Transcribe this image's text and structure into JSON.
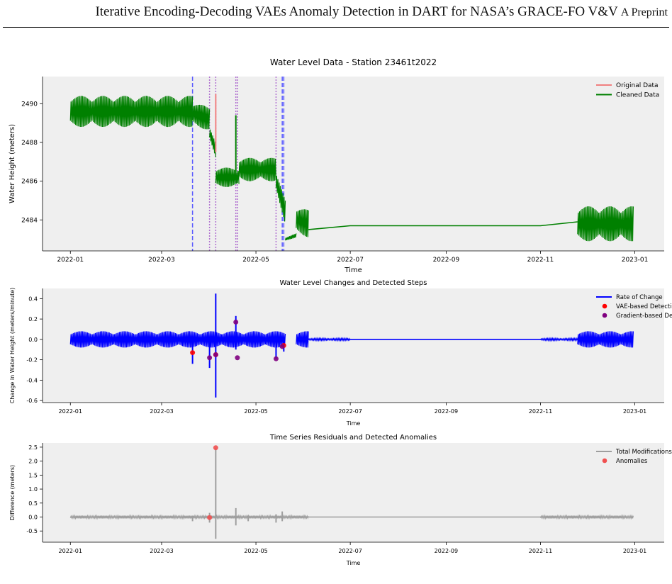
{
  "header": {
    "running_title": "Iterative Encoding-Decoding VAEs Anomaly Detection in DART for NASA’s GRACE-FO V&V",
    "running_title_suffix": "A Preprint"
  },
  "chart_data": [
    {
      "type": "line",
      "title": "Water Level Data - Station 23461t2022",
      "xlabel": "Time",
      "ylabel": "Water Height (meters)",
      "x_tick_labels": [
        "2022-01",
        "2022-03",
        "2022-05",
        "2022-07",
        "2022-09",
        "2022-11",
        "2023-01"
      ],
      "x_tick_values": [
        "2022-01-01",
        "2022-03-01",
        "2022-05-01",
        "2022-07-01",
        "2022-09-01",
        "2022-11-01",
        "2023-01-01"
      ],
      "y_tick_labels": [
        "2484",
        "2486",
        "2488",
        "2490"
      ],
      "xlim": [
        "2021-12-14",
        "2023-01-20"
      ],
      "ylim": [
        2482.4,
        2491.4
      ],
      "grid": false,
      "legend": "top-right",
      "background": "#efefef",
      "series": [
        {
          "name": "Original Data",
          "color": "#f08080"
        },
        {
          "name": "Cleaned Data",
          "color": "#008000"
        }
      ],
      "segments": [
        {
          "start": "2022-01-01",
          "end": "2022-03-21",
          "center": [
            2489.6,
            2489.6
          ],
          "amplitude": 0.8
        },
        {
          "start": "2022-03-21",
          "end": "2022-04-01",
          "center": [
            2489.5,
            2489.2
          ],
          "amplitude": 0.6
        },
        {
          "start": "2022-04-01",
          "end": "2022-04-05",
          "center": [
            2488.5,
            2487.6
          ],
          "amplitude": 0.4
        },
        {
          "start": "2022-04-05",
          "end": "2022-04-20",
          "center": [
            2486.2,
            2486.2
          ],
          "amplitude": 0.5
        },
        {
          "start": "2022-04-20",
          "end": "2022-05-14",
          "center": [
            2486.6,
            2486.6
          ],
          "amplitude": 0.6
        },
        {
          "start": "2022-05-14",
          "end": "2022-05-20",
          "center": [
            2486.0,
            2484.4
          ],
          "amplitude": 0.6
        },
        {
          "start": "2022-05-20",
          "end": "2022-05-27",
          "center": [
            2483.0,
            2483.2
          ],
          "amplitude": 0.1
        },
        {
          "start": "2022-05-27",
          "end": "2022-06-04",
          "center": [
            2484.0,
            2483.8
          ],
          "amplitude": 0.7
        },
        {
          "start": "2022-11-25",
          "end": "2022-12-31",
          "center": [
            2483.8,
            2483.8
          ],
          "amplitude": 0.9
        }
      ],
      "connectors": [
        {
          "x": [
            "2022-06-04",
            "2022-07-01",
            "2022-11-01",
            "2022-11-25"
          ],
          "y": [
            2483.5,
            2483.7,
            2483.7,
            2483.9
          ]
        }
      ],
      "spikes": [
        {
          "x": "2022-04-05",
          "y": [
            2487.5,
            2490.5
          ],
          "color": "#f08080"
        },
        {
          "x": "2022-04-18",
          "y": [
            2486.5,
            2489.4
          ],
          "color": "#008000"
        }
      ],
      "vlines": [
        {
          "x": "2022-03-21",
          "color": "#5a5aff",
          "style": "dashed"
        },
        {
          "x": "2022-04-01",
          "color": "#b070d0",
          "style": "dotted"
        },
        {
          "x": "2022-04-05",
          "color": "#b070d0",
          "style": "dotted"
        },
        {
          "x": "2022-04-18",
          "color": "#b070d0",
          "style": "dotted"
        },
        {
          "x": "2022-04-19",
          "color": "#b070d0",
          "style": "dotted"
        },
        {
          "x": "2022-05-14",
          "color": "#b070d0",
          "style": "dotted"
        },
        {
          "x": "2022-05-18",
          "color": "#5a5aff",
          "style": "dashed"
        },
        {
          "x": "2022-05-19",
          "color": "#5a5aff",
          "style": "dashed"
        }
      ]
    },
    {
      "type": "line",
      "title": "Water Level Changes and Detected Steps",
      "xlabel": "Time",
      "ylabel": "Change in Water Height (meters/minute)",
      "x_tick_labels": [
        "2022-01",
        "2022-03",
        "2022-05",
        "2022-07",
        "2022-09",
        "2022-11",
        "2023-01"
      ],
      "x_tick_values": [
        "2022-01-01",
        "2022-03-01",
        "2022-05-01",
        "2022-07-01",
        "2022-09-01",
        "2022-11-01",
        "2023-01-01"
      ],
      "y_tick_labels": [
        "-0.6",
        "-0.4",
        "-0.2",
        "0.0",
        "0.2",
        "0.4"
      ],
      "xlim": [
        "2021-12-14",
        "2023-01-20"
      ],
      "ylim": [
        -0.62,
        0.5
      ],
      "grid": false,
      "legend": "top-right",
      "background": "#efefef",
      "series": [
        {
          "name": "Rate of Change",
          "color": "#0000ff",
          "kind": "line"
        },
        {
          "name": "VAE-based Detection",
          "color": "#ff0000",
          "kind": "marker"
        },
        {
          "name": "Gradient-based Detection",
          "color": "#800080",
          "kind": "marker"
        }
      ],
      "segments": [
        {
          "start": "2022-01-01",
          "end": "2022-05-20",
          "center": [
            0.0,
            0.0
          ],
          "amplitude": 0.08
        },
        {
          "start": "2022-05-27",
          "end": "2022-06-04",
          "center": [
            0.0,
            0.0
          ],
          "amplitude": 0.08
        },
        {
          "start": "2022-06-04",
          "end": "2022-07-01",
          "center": [
            0.0,
            0.0
          ],
          "amplitude": 0.01
        },
        {
          "start": "2022-11-01",
          "end": "2022-11-25",
          "center": [
            0.0,
            0.0
          ],
          "amplitude": 0.01
        },
        {
          "start": "2022-11-25",
          "end": "2022-12-31",
          "center": [
            0.0,
            0.0
          ],
          "amplitude": 0.08
        }
      ],
      "connectors": [
        {
          "x": [
            "2022-07-01",
            "2022-11-01"
          ],
          "y": [
            0.0,
            0.0
          ]
        }
      ],
      "spikes": [
        {
          "x": "2022-03-21",
          "y": [
            -0.24,
            0.0
          ],
          "color": "#0000ff"
        },
        {
          "x": "2022-04-01",
          "y": [
            -0.28,
            0.0
          ],
          "color": "#0000ff"
        },
        {
          "x": "2022-04-05",
          "y": [
            -0.57,
            0.45
          ],
          "color": "#0000ff"
        },
        {
          "x": "2022-04-18",
          "y": [
            -0.1,
            0.23
          ],
          "color": "#0000ff"
        },
        {
          "x": "2022-05-14",
          "y": [
            -0.19,
            0.0
          ],
          "color": "#0000ff"
        },
        {
          "x": "2022-05-19",
          "y": [
            -0.12,
            0.0
          ],
          "color": "#0000ff"
        }
      ],
      "markers": [
        {
          "x": "2022-03-21",
          "y": -0.13,
          "color": "#ff0000"
        },
        {
          "x": "2022-04-05",
          "y": -0.15,
          "color": "#ff0000"
        },
        {
          "x": "2022-05-19",
          "y": -0.06,
          "color": "#ff0000"
        },
        {
          "x": "2022-04-01",
          "y": -0.18,
          "color": "#800080"
        },
        {
          "x": "2022-04-05",
          "y": -0.15,
          "color": "#800080"
        },
        {
          "x": "2022-04-18",
          "y": 0.17,
          "color": "#800080"
        },
        {
          "x": "2022-04-19",
          "y": -0.18,
          "color": "#800080"
        },
        {
          "x": "2022-05-14",
          "y": -0.19,
          "color": "#800080"
        },
        {
          "x": "2022-05-18",
          "y": -0.07,
          "color": "#800080"
        }
      ]
    },
    {
      "type": "line",
      "title": "Time Series Residuals and Detected Anomalies",
      "xlabel": "Time",
      "ylabel": "Difference (meters)",
      "x_tick_labels": [
        "2022-01",
        "2022-03",
        "2022-05",
        "2022-07",
        "2022-09",
        "2022-11",
        "2023-01"
      ],
      "x_tick_values": [
        "2022-01-01",
        "2022-03-01",
        "2022-05-01",
        "2022-07-01",
        "2022-09-01",
        "2022-11-01",
        "2023-01-01"
      ],
      "y_tick_labels": [
        "-0.5",
        "0.0",
        "0.5",
        "1.0",
        "1.5",
        "2.0",
        "2.5"
      ],
      "xlim": [
        "2021-12-14",
        "2023-01-20"
      ],
      "ylim": [
        -0.9,
        2.65
      ],
      "grid": false,
      "legend": "top-right",
      "background": "#efefef",
      "series": [
        {
          "name": "Total Modifications",
          "color": "#9e9e9e",
          "kind": "line"
        },
        {
          "name": "Anomalies",
          "color": "#f05050",
          "kind": "marker"
        }
      ],
      "segments": [
        {
          "start": "2022-01-01",
          "end": "2022-06-04",
          "center": [
            0.0,
            0.0
          ],
          "amplitude": 0.05
        },
        {
          "start": "2022-11-01",
          "end": "2022-12-31",
          "center": [
            0.0,
            0.0
          ],
          "amplitude": 0.05
        }
      ],
      "connectors": [
        {
          "x": [
            "2022-06-04",
            "2022-11-01"
          ],
          "y": [
            0.0,
            0.0
          ]
        }
      ],
      "spikes": [
        {
          "x": "2022-03-21",
          "y": [
            -0.15,
            0.05
          ],
          "color": "#9e9e9e"
        },
        {
          "x": "2022-04-01",
          "y": [
            -0.2,
            0.15
          ],
          "color": "#9e9e9e"
        },
        {
          "x": "2022-04-05",
          "y": [
            -0.78,
            2.48
          ],
          "color": "#9e9e9e"
        },
        {
          "x": "2022-04-18",
          "y": [
            -0.3,
            0.32
          ],
          "color": "#9e9e9e"
        },
        {
          "x": "2022-04-26",
          "y": [
            -0.15,
            0.05
          ],
          "color": "#9e9e9e"
        },
        {
          "x": "2022-05-14",
          "y": [
            -0.2,
            0.1
          ],
          "color": "#9e9e9e"
        },
        {
          "x": "2022-05-18",
          "y": [
            -0.15,
            0.2
          ],
          "color": "#9e9e9e"
        }
      ],
      "markers": [
        {
          "x": "2022-04-01",
          "y": -0.02,
          "color": "#f05050"
        },
        {
          "x": "2022-04-05",
          "y": 2.48,
          "color": "#f05050"
        }
      ]
    }
  ]
}
